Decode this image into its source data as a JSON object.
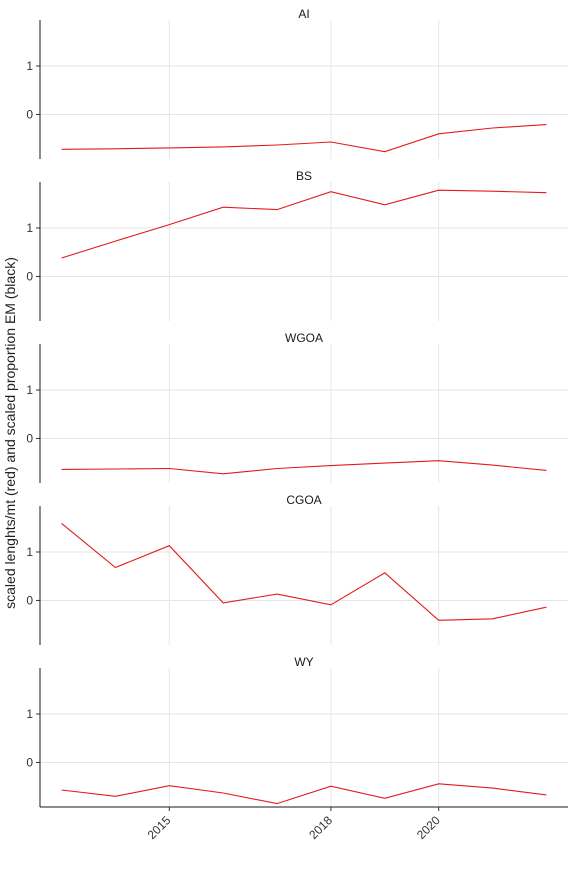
{
  "chart_data": {
    "type": "line",
    "ylabel": "scaled lenghts/mt (red) and scaled proportion EM (black)",
    "xlabel": "",
    "x_ticks": [
      2015,
      2018,
      2020
    ],
    "y_ticks": [
      0,
      1
    ],
    "xlim": [
      2012.6,
      2022.4
    ],
    "ylim": [
      -0.92,
      1.95
    ],
    "grid": true,
    "series_color": "#e31a1c",
    "panels": [
      {
        "title": "AI",
        "x": [
          2013,
          2014,
          2015,
          2016,
          2017,
          2018,
          2019,
          2020,
          2021,
          2022
        ],
        "values": [
          -0.72,
          -0.71,
          -0.69,
          -0.67,
          -0.63,
          -0.57,
          -0.77,
          -0.4,
          -0.28,
          -0.21
        ]
      },
      {
        "title": "BS",
        "x": [
          2013,
          2014,
          2015,
          2016,
          2017,
          2018,
          2019,
          2020,
          2021,
          2022
        ],
        "values": [
          0.38,
          0.73,
          1.07,
          1.43,
          1.38,
          1.75,
          1.48,
          1.78,
          1.76,
          1.73
        ]
      },
      {
        "title": "WGOA",
        "x": [
          2013,
          2014,
          2015,
          2016,
          2017,
          2018,
          2019,
          2020,
          2021,
          2022
        ],
        "values": [
          -0.64,
          -0.63,
          -0.62,
          -0.73,
          -0.62,
          -0.56,
          -0.51,
          -0.46,
          -0.55,
          -0.66
        ]
      },
      {
        "title": "CGOA",
        "x": [
          2013,
          2014,
          2015,
          2016,
          2017,
          2018,
          2019,
          2020,
          2021,
          2022
        ],
        "values": [
          1.59,
          0.68,
          1.13,
          -0.05,
          0.13,
          -0.09,
          0.57,
          -0.41,
          -0.38,
          -0.14
        ]
      },
      {
        "title": "WY",
        "x": [
          2013,
          2014,
          2015,
          2016,
          2017,
          2018,
          2019,
          2020,
          2021,
          2022
        ],
        "values": [
          -0.57,
          -0.7,
          -0.48,
          -0.63,
          -0.85,
          -0.49,
          -0.74,
          -0.44,
          -0.53,
          -0.67
        ]
      }
    ]
  }
}
